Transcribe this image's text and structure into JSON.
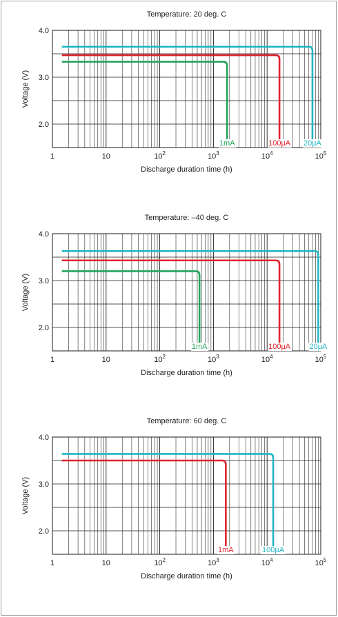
{
  "chart_data": [
    {
      "type": "line",
      "title": "Temperature: 20 deg. C",
      "xlabel": "Discharge duration time (h)",
      "ylabel": "Voltage (V)",
      "x_scale": "log",
      "xlim": [
        1,
        100000
      ],
      "ylim": [
        1.5,
        4.0
      ],
      "x_tick_labels": [
        {
          "value": 1,
          "base": "1",
          "exp": ""
        },
        {
          "value": 10,
          "base": "10",
          "exp": ""
        },
        {
          "value": 100,
          "base": "10",
          "exp": "2"
        },
        {
          "value": 1000,
          "base": "10",
          "exp": "3"
        },
        {
          "value": 10000,
          "base": "10",
          "exp": "4"
        },
        {
          "value": 100000,
          "base": "10",
          "exp": "5"
        }
      ],
      "y_tick_labels": [
        {
          "value": 4.0,
          "label": "4.0"
        },
        {
          "value": 3.0,
          "label": "3.0"
        },
        {
          "value": 2.0,
          "label": "2.0"
        }
      ],
      "grid": true,
      "series": [
        {
          "name": "20µA",
          "color": "#1fb5c4",
          "voltage": 3.65,
          "x_start": 1.5,
          "x_end": 70000
        },
        {
          "name": "100µA",
          "color": "#e0212e",
          "voltage": 3.47,
          "x_start": 1.5,
          "x_end": 17000
        },
        {
          "name": "1mA",
          "color": "#22a45a",
          "voltage": 3.33,
          "x_start": 1.5,
          "x_end": 1800
        }
      ]
    },
    {
      "type": "line",
      "title": "Temperature: –40 deg. C",
      "xlabel": "Discharge duration time (h)",
      "ylabel": "Voltage (V)",
      "x_scale": "log",
      "xlim": [
        1,
        100000
      ],
      "ylim": [
        1.5,
        4.0
      ],
      "x_tick_labels": [
        {
          "value": 1,
          "base": "1",
          "exp": ""
        },
        {
          "value": 10,
          "base": "10",
          "exp": ""
        },
        {
          "value": 100,
          "base": "10",
          "exp": "2"
        },
        {
          "value": 1000,
          "base": "10",
          "exp": "3"
        },
        {
          "value": 10000,
          "base": "10",
          "exp": "4"
        },
        {
          "value": 100000,
          "base": "10",
          "exp": "5"
        }
      ],
      "y_tick_labels": [
        {
          "value": 4.0,
          "label": "4.0"
        },
        {
          "value": 3.0,
          "label": "3.0"
        },
        {
          "value": 2.0,
          "label": "2.0"
        }
      ],
      "grid": true,
      "series": [
        {
          "name": "20µA",
          "color": "#1fb5c4",
          "voltage": 3.63,
          "x_start": 1.5,
          "x_end": 90000
        },
        {
          "name": "100µA",
          "color": "#e0212e",
          "voltage": 3.43,
          "x_start": 1.5,
          "x_end": 17000
        },
        {
          "name": "1mA",
          "color": "#22a45a",
          "voltage": 3.2,
          "x_start": 1.5,
          "x_end": 550
        }
      ]
    },
    {
      "type": "line",
      "title": "Temperature: 60 deg. C",
      "xlabel": "Discharge duration time (h)",
      "ylabel": "Voltage (V)",
      "x_scale": "log",
      "xlim": [
        1,
        100000
      ],
      "ylim": [
        1.5,
        4.0
      ],
      "x_tick_labels": [
        {
          "value": 1,
          "base": "1",
          "exp": ""
        },
        {
          "value": 10,
          "base": "10",
          "exp": ""
        },
        {
          "value": 100,
          "base": "10",
          "exp": "2"
        },
        {
          "value": 1000,
          "base": "10",
          "exp": "3"
        },
        {
          "value": 10000,
          "base": "10",
          "exp": "4"
        },
        {
          "value": 100000,
          "base": "10",
          "exp": "5"
        }
      ],
      "y_tick_labels": [
        {
          "value": 4.0,
          "label": "4.0"
        },
        {
          "value": 3.0,
          "label": "3.0"
        },
        {
          "value": 2.0,
          "label": "2.0"
        }
      ],
      "grid": true,
      "series": [
        {
          "name": "100µA",
          "color": "#1fb5c4",
          "voltage": 3.64,
          "x_start": 1.5,
          "x_end": 13000
        },
        {
          "name": "1mA",
          "color": "#e0212e",
          "voltage": 3.5,
          "x_start": 1.5,
          "x_end": 1700
        }
      ]
    }
  ]
}
